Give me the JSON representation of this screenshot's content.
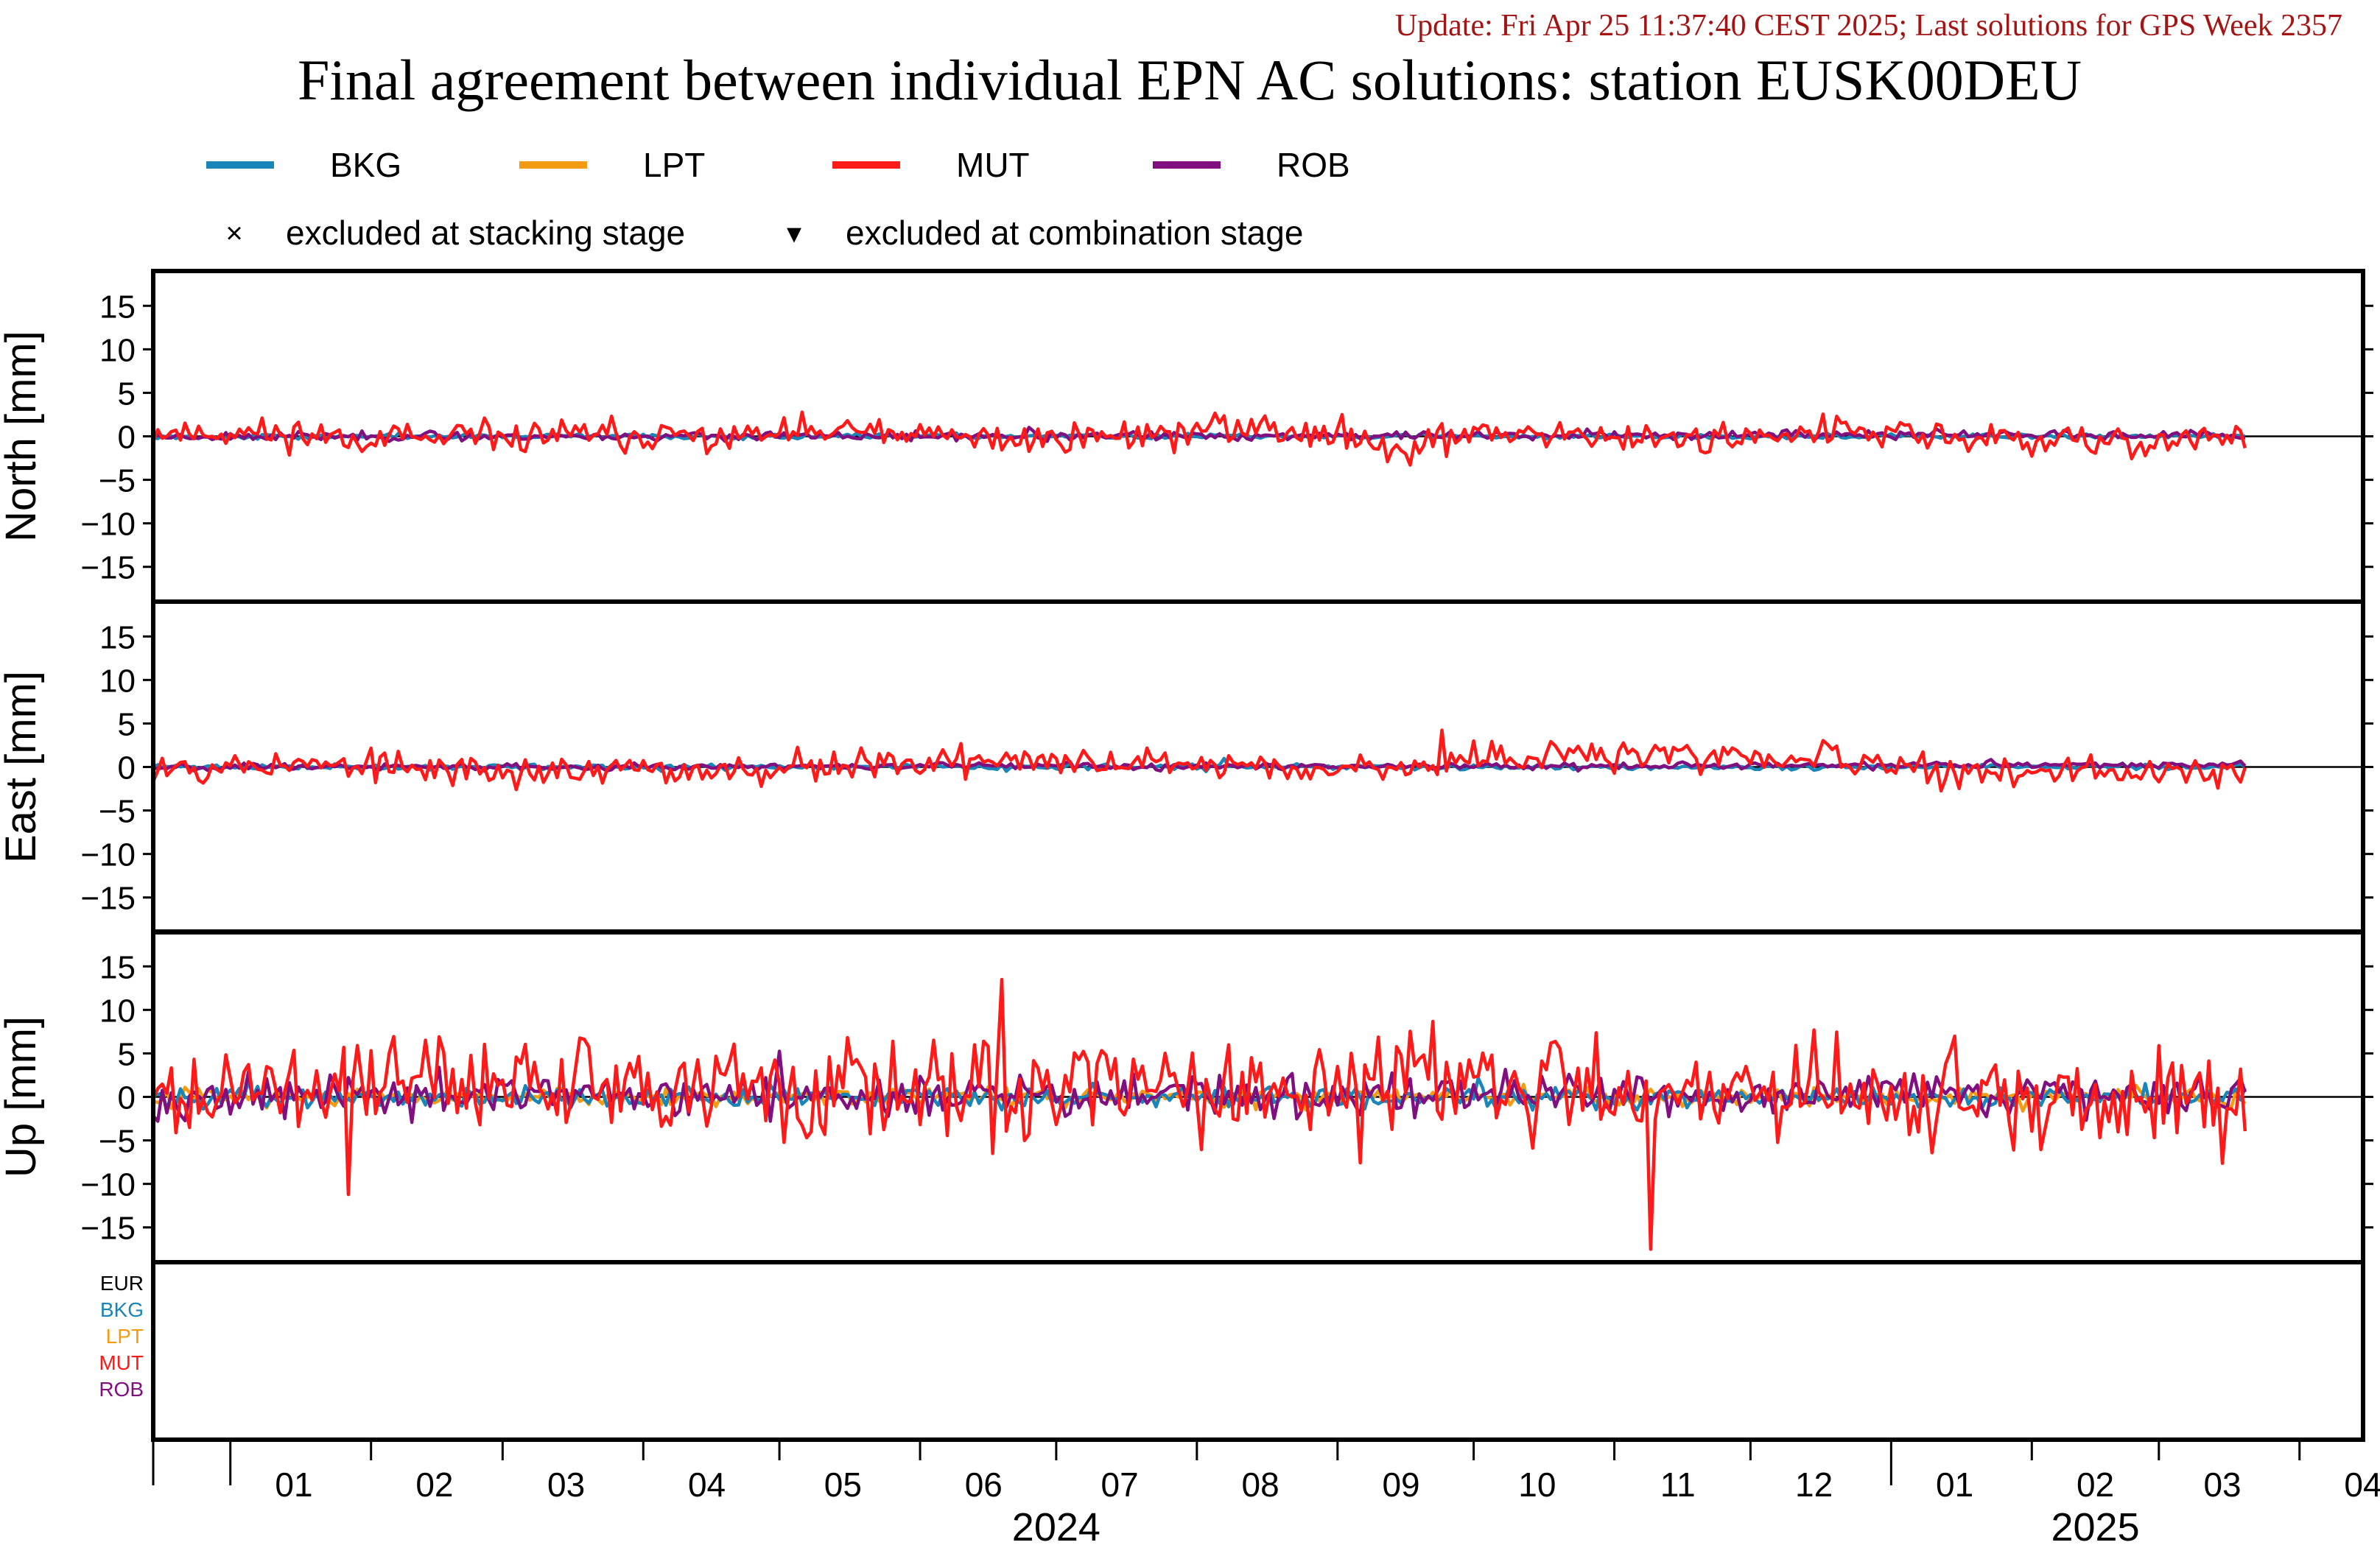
{
  "update_text": "Update: Fri Apr 25 11:37:40 CEST 2025; Last solutions for GPS Week 2357",
  "title": "Final agreement between individual EPN AC solutions: station EUSK00DEU",
  "legend": {
    "series": [
      {
        "name": "BKG",
        "color": "#1a85b8"
      },
      {
        "name": "LPT",
        "color": "#f39c12"
      },
      {
        "name": "MUT",
        "color": "#ff1a1a"
      },
      {
        "name": "ROB",
        "color": "#800f80"
      }
    ],
    "markers": [
      {
        "symbol": "×",
        "label": "excluded at stacking stage"
      },
      {
        "symbol": "▾",
        "label": "excluded at combination stage"
      }
    ]
  },
  "chart_data": {
    "type": "line",
    "x_axis": {
      "start": "2023-12-15",
      "end": "2025-04-15",
      "months": [
        {
          "label": "01",
          "date": "2024-01-15"
        },
        {
          "label": "02",
          "date": "2024-02-15"
        },
        {
          "label": "03",
          "date": "2024-03-15"
        },
        {
          "label": "04",
          "date": "2024-04-15"
        },
        {
          "label": "05",
          "date": "2024-05-15"
        },
        {
          "label": "06",
          "date": "2024-06-15"
        },
        {
          "label": "07",
          "date": "2024-07-15"
        },
        {
          "label": "08",
          "date": "2024-08-15"
        },
        {
          "label": "09",
          "date": "2024-09-15"
        },
        {
          "label": "10",
          "date": "2024-10-15"
        },
        {
          "label": "11",
          "date": "2024-11-15"
        },
        {
          "label": "12",
          "date": "2024-12-15"
        },
        {
          "label": "01",
          "date": "2025-01-15"
        },
        {
          "label": "02",
          "date": "2025-02-15"
        },
        {
          "label": "03",
          "date": "2025-03-15"
        },
        {
          "label": "04",
          "date": "2025-04-15"
        }
      ],
      "years": [
        {
          "label": "2024",
          "date": "2024-07-01"
        },
        {
          "label": "2025",
          "date": "2025-02-15"
        }
      ]
    },
    "panels": [
      {
        "ylabel": "North [mm]",
        "ylim": [
          -19,
          19
        ],
        "yticks": [
          "15",
          "10",
          "5",
          "0",
          "−5",
          "−10",
          "−15"
        ],
        "series": [
          {
            "name": "MUT",
            "color": "#ff1a1a",
            "x": [
              "2023-12-15",
              "2024-01-15",
              "2024-02-15",
              "2024-03-15",
              "2024-04-15",
              "2024-05-15",
              "2024-06-15",
              "2024-07-15",
              "2024-08-15",
              "2024-09-15",
              "2024-10-15",
              "2024-11-15",
              "2024-12-15",
              "2025-01-15",
              "2025-02-15",
              "2025-03-20"
            ],
            "y": [
              0.5,
              0.3,
              -0.5,
              0.2,
              -0.2,
              0.6,
              -0.4,
              0.1,
              1.0,
              -0.8,
              0.7,
              -0.6,
              0.8,
              -0.3,
              -0.8,
              -0.2
            ],
            "amp": 0.9,
            "seed": 11
          },
          {
            "name": "ROB",
            "color": "#800f80",
            "x": [
              "2023-12-15",
              "2024-06-15",
              "2025-01-15",
              "2025-03-20"
            ],
            "y": [
              0.0,
              0.0,
              0.2,
              0.0
            ],
            "amp": 0.25,
            "seed": 23
          },
          {
            "name": "BKG",
            "color": "#1a85b8",
            "x": [
              "2023-12-15",
              "2025-03-20"
            ],
            "y": [
              0.0,
              0.0
            ],
            "amp": 0.15,
            "seed": 37
          }
        ]
      },
      {
        "ylabel": "East [mm]",
        "ylim": [
          -19,
          19
        ],
        "yticks": [
          "15",
          "10",
          "5",
          "0",
          "−5",
          "−10",
          "−15"
        ],
        "series": [
          {
            "name": "MUT",
            "color": "#ff1a1a",
            "x": [
              "2023-12-15",
              "2024-01-15",
              "2024-02-15",
              "2024-03-15",
              "2024-04-15",
              "2024-05-15",
              "2024-06-15",
              "2024-07-15",
              "2024-08-15",
              "2024-09-15",
              "2024-10-15",
              "2024-11-15",
              "2024-12-15",
              "2025-01-15",
              "2025-02-15",
              "2025-03-20"
            ],
            "y": [
              0.2,
              0.3,
              -0.4,
              -0.5,
              -0.4,
              0.3,
              0.8,
              0.3,
              0.3,
              0.0,
              1.3,
              1.2,
              1.0,
              -0.6,
              -0.8,
              -0.5
            ],
            "amp": 0.9,
            "seed": 53
          },
          {
            "name": "ROB",
            "color": "#800f80",
            "x": [
              "2023-12-15",
              "2024-06-15",
              "2025-01-15",
              "2025-03-20"
            ],
            "y": [
              0.0,
              0.1,
              0.2,
              0.3
            ],
            "amp": 0.2,
            "seed": 67
          },
          {
            "name": "BKG",
            "color": "#1a85b8",
            "x": [
              "2023-12-15",
              "2025-03-20"
            ],
            "y": [
              0.0,
              0.0
            ],
            "amp": 0.15,
            "seed": 71
          }
        ]
      },
      {
        "ylabel": "Up [mm]",
        "ylim": [
          -19,
          19
        ],
        "yticks": [
          "15",
          "10",
          "5",
          "0",
          "−5",
          "−10",
          "−15"
        ],
        "series": [
          {
            "name": "MUT",
            "color": "#ff1a1a",
            "x": [
              "2023-12-15",
              "2024-01-15",
              "2024-02-15",
              "2024-03-15",
              "2024-04-15",
              "2024-05-15",
              "2024-06-15",
              "2024-07-15",
              "2024-08-15",
              "2024-09-15",
              "2024-10-15",
              "2024-11-15",
              "2024-12-15",
              "2025-01-15",
              "2025-02-15",
              "2025-03-20"
            ],
            "y": [
              0.5,
              1.0,
              2.0,
              1.5,
              0.8,
              1.5,
              0.5,
              1.5,
              2.0,
              1.0,
              1.5,
              1.0,
              1.5,
              -1.0,
              -1.5,
              -0.5
            ],
            "amp": 3.0,
            "seed": 89
          },
          {
            "name": "ROB",
            "color": "#800f80",
            "x": [
              "2023-12-15",
              "2024-06-15",
              "2025-01-15",
              "2025-03-20"
            ],
            "y": [
              0.0,
              0.0,
              0.0,
              0.5
            ],
            "amp": 1.2,
            "seed": 97
          },
          {
            "name": "BKG",
            "color": "#1a85b8",
            "x": [
              "2023-12-15",
              "2025-03-20"
            ],
            "y": [
              0.0,
              0.0
            ],
            "amp": 0.6,
            "seed": 101
          },
          {
            "name": "LPT",
            "color": "#f39c12",
            "x": [
              "2023-12-15",
              "2025-03-20"
            ],
            "y": [
              0.0,
              0.0
            ],
            "amp": 0.5,
            "seed": 113
          }
        ]
      }
    ],
    "outlier_panel": {
      "labels": [
        {
          "text": "EUR",
          "color": "#000000"
        },
        {
          "text": "BKG",
          "color": "#1a85b8"
        },
        {
          "text": "LPT",
          "color": "#f39c12"
        },
        {
          "text": "MUT",
          "color": "#ff1a1a"
        },
        {
          "text": "ROB",
          "color": "#800f80"
        }
      ]
    }
  }
}
